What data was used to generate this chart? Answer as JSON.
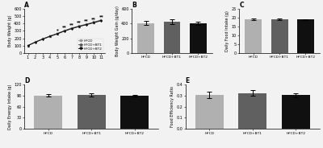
{
  "panel_A": {
    "weeks": [
      1,
      2,
      3,
      4,
      5,
      6,
      7,
      8,
      9,
      10,
      11
    ],
    "HFCD": [
      100,
      148,
      190,
      230,
      265,
      305,
      340,
      368,
      393,
      420,
      450
    ],
    "HFCD_BT1": [
      100,
      148,
      190,
      228,
      263,
      302,
      336,
      364,
      390,
      416,
      445
    ],
    "HFCD_BT2": [
      100,
      146,
      187,
      225,
      260,
      298,
      332,
      360,
      385,
      412,
      440
    ],
    "ylabel": "Body Weight (g)",
    "xlabel": "",
    "title": "A",
    "ylim": [
      0,
      600
    ],
    "yticks": [
      0,
      100,
      200,
      300,
      400,
      500,
      600
    ],
    "sig_double": [
      6,
      7,
      8,
      9,
      10,
      11
    ],
    "sig_single": [
      5
    ]
  },
  "panel_B": {
    "categories": [
      "HFCD",
      "HFCD+BT1",
      "HFCD+BT2"
    ],
    "values": [
      405,
      425,
      405
    ],
    "errors": [
      28,
      38,
      20
    ],
    "colors": [
      "#b0b0b0",
      "#606060",
      "#101010"
    ],
    "ylabel": "Body Weight Gain (g/day)",
    "title": "B",
    "ylim": [
      0,
      600
    ],
    "yticks": [
      0,
      200,
      400,
      600
    ]
  },
  "panel_C": {
    "categories": [
      "HFCD",
      "HFCD+BT1",
      "HFCD+BT2"
    ],
    "values": [
      19.0,
      19.3,
      18.9
    ],
    "errors": [
      0.55,
      0.45,
      0.38
    ],
    "colors": [
      "#b0b0b0",
      "#606060",
      "#101010"
    ],
    "ylabel": "Daily Food Intake (g)",
    "title": "C",
    "ylim": [
      0,
      25
    ],
    "yticks": [
      0,
      5,
      10,
      15,
      20,
      25
    ]
  },
  "panel_D": {
    "categories": [
      "HFCD",
      "HFCD+BT1",
      "HFCD+BT2"
    ],
    "values": [
      91,
      92,
      90
    ],
    "errors": [
      2.5,
      3.5,
      2.0
    ],
    "colors": [
      "#b0b0b0",
      "#606060",
      "#101010"
    ],
    "ylabel": "Daily Energy Intake (g)",
    "title": "D",
    "ylim": [
      0,
      120
    ],
    "yticks": [
      0,
      30,
      60,
      90,
      120
    ]
  },
  "panel_E": {
    "categories": [
      "HFCD",
      "HFCD+BT1",
      "HFCD+BT2"
    ],
    "values": [
      0.305,
      0.325,
      0.305
    ],
    "errors": [
      0.028,
      0.025,
      0.02
    ],
    "colors": [
      "#b0b0b0",
      "#606060",
      "#101010"
    ],
    "ylabel": "Food Efficiency Ratio",
    "title": "E",
    "ylim": [
      0.0,
      0.4
    ],
    "yticks": [
      0.0,
      0.1,
      0.2,
      0.3,
      0.4
    ]
  },
  "legend_labels": [
    "HFCD",
    "HFCD+BT1",
    "HFCD+BT2"
  ],
  "line_colors": [
    "#999999",
    "#555555",
    "#111111"
  ],
  "bg_color": "#f2f2f2"
}
